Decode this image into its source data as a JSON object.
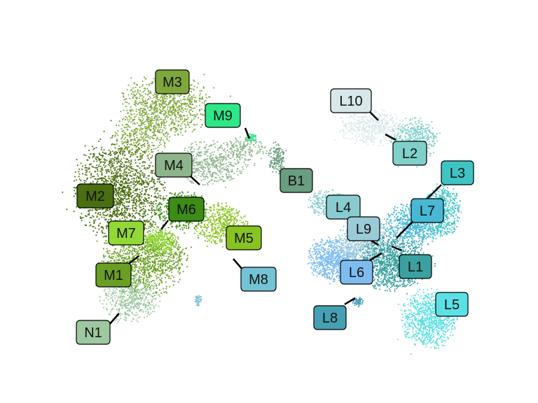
{
  "chart_data": {
    "type": "scatter",
    "title": "",
    "xlabel": "",
    "ylabel": "",
    "grid": false,
    "axes_visible": false,
    "legend": "none",
    "clusters": [
      {
        "label": "M3",
        "color": "#7ea83a"
      },
      {
        "label": "M9",
        "color": "#2ee887"
      },
      {
        "label": "M4",
        "color": "#8db48a"
      },
      {
        "label": "M2",
        "color": "#4a6f10"
      },
      {
        "label": "M6",
        "color": "#3c8c16"
      },
      {
        "label": "M7",
        "color": "#93d935"
      },
      {
        "label": "M5",
        "color": "#88c420"
      },
      {
        "label": "M1",
        "color": "#6a9e24"
      },
      {
        "label": "M8",
        "color": "#74c3d4"
      },
      {
        "label": "N1",
        "color": "#9dc8a0"
      },
      {
        "label": "B1",
        "color": "#6a9e80"
      },
      {
        "label": "L10",
        "color": "#d8e7ea"
      },
      {
        "label": "L2",
        "color": "#80d0ca"
      },
      {
        "label": "L3",
        "color": "#3ec4c4"
      },
      {
        "label": "L4",
        "color": "#88ccd0"
      },
      {
        "label": "L7",
        "color": "#48b8d4"
      },
      {
        "label": "L9",
        "color": "#9ccbd8"
      },
      {
        "label": "L1",
        "color": "#3aa0a0"
      },
      {
        "label": "L6",
        "color": "#7ebcf0"
      },
      {
        "label": "L8",
        "color": "#46a0b4"
      },
      {
        "label": "L5",
        "color": "#5ce0e4"
      }
    ]
  }
}
